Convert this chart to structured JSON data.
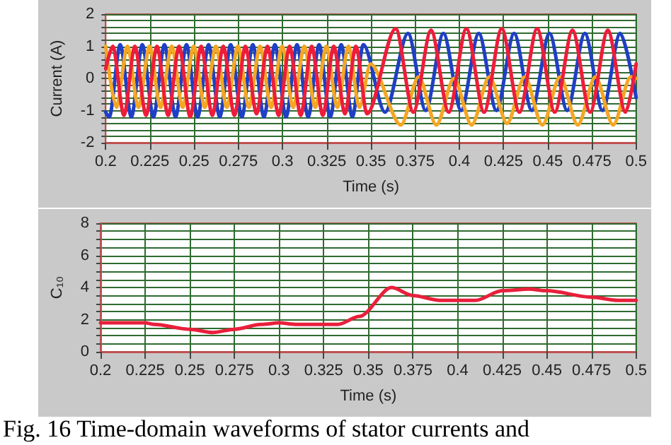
{
  "chart_data": [
    {
      "type": "line",
      "xlabel": "Time (s)",
      "ylabel": "Current (A)",
      "xlim": [
        0.2,
        0.5
      ],
      "xticks": [
        0.2,
        0.225,
        0.25,
        0.275,
        0.3,
        0.325,
        0.35,
        0.375,
        0.4,
        0.425,
        0.45,
        0.475,
        0.5
      ],
      "ylim": [
        -2,
        2
      ],
      "yticks": [
        -2,
        {
          "value": -1.8,
          "label": null
        },
        {
          "value": -1.6,
          "label": null
        },
        {
          "value": -1.4,
          "label": null
        },
        {
          "value": -1.2,
          "label": null
        },
        -1,
        {
          "value": -0.8,
          "label": null
        },
        {
          "value": -0.6,
          "label": null
        },
        {
          "value": -0.4,
          "label": null
        },
        {
          "value": -0.2,
          "label": null
        },
        0,
        {
          "value": 0.2,
          "label": null
        },
        {
          "value": 0.4,
          "label": null
        },
        {
          "value": 0.6,
          "label": null
        },
        {
          "value": 0.8,
          "label": null
        },
        1,
        {
          "value": 1.2,
          "label": null
        },
        {
          "value": 1.4,
          "label": null
        },
        {
          "value": 1.6,
          "label": null
        },
        {
          "value": 1.8,
          "label": null
        },
        2
      ],
      "grid": true,
      "marker": "none",
      "line_style": "solid",
      "series": [
        {
          "color": "#1f3fc4",
          "x": [
            0.2,
            0.202,
            0.2082,
            0.2145,
            0.2207,
            0.227,
            0.2332,
            0.2395,
            0.2457,
            0.252,
            0.2582,
            0.2645,
            0.2707,
            0.277,
            0.2832,
            0.2895,
            0.2957,
            0.302,
            0.3082,
            0.3145,
            0.3207,
            0.327,
            0.3332,
            0.3395,
            0.3457,
            0.358,
            0.371,
            0.381,
            0.391,
            0.401,
            0.411,
            0.421,
            0.431,
            0.441,
            0.451,
            0.461,
            0.471,
            0.481,
            0.491,
            0.5
          ],
          "values": [
            -1.05,
            -1.2,
            1.05,
            -1.2,
            1.05,
            -1.2,
            1.05,
            -1.2,
            1.05,
            -1.2,
            1.05,
            -1.2,
            1.05,
            -1.2,
            1.05,
            -1.2,
            1.05,
            -1.2,
            1.05,
            -1.2,
            1.05,
            -1.2,
            1.05,
            -1.2,
            1.05,
            -1.05,
            1.4,
            -1,
            1.4,
            -1,
            1.4,
            -1,
            1.4,
            -1,
            1.4,
            -1,
            1.4,
            -1,
            1.4,
            -0.6
          ]
        },
        {
          "color": "#f5a623",
          "x": [
            0.2,
            0.206,
            0.2123,
            0.2185,
            0.2248,
            0.231,
            0.2373,
            0.2435,
            0.2498,
            0.256,
            0.2623,
            0.2685,
            0.2748,
            0.281,
            0.2873,
            0.2935,
            0.2998,
            0.306,
            0.3123,
            0.3185,
            0.3248,
            0.331,
            0.3373,
            0.3435,
            0.3498,
            0.367,
            0.377,
            0.387,
            0.397,
            0.407,
            0.417,
            0.427,
            0.437,
            0.447,
            0.457,
            0.467,
            0.477,
            0.487,
            0.497,
            0.5
          ],
          "values": [
            1,
            -0.9,
            1,
            -0.9,
            1,
            -0.9,
            1,
            -0.9,
            1,
            -0.9,
            1,
            -0.9,
            1,
            -0.9,
            1,
            -0.9,
            1,
            -0.9,
            1,
            -0.9,
            1,
            -0.9,
            1,
            -0.9,
            0.45,
            -1.45,
            0.05,
            -1.45,
            0,
            -1.45,
            0.05,
            -1.4,
            0.05,
            -1.45,
            0.05,
            -1.45,
            0.05,
            -1.45,
            0.05,
            0
          ]
        },
        {
          "color": "#ee1c3a",
          "x": [
            0.2,
            0.204,
            0.2103,
            0.2165,
            0.2228,
            0.229,
            0.2353,
            0.2415,
            0.2478,
            0.254,
            0.2603,
            0.2665,
            0.2728,
            0.279,
            0.2853,
            0.2915,
            0.2978,
            0.304,
            0.3103,
            0.3165,
            0.3228,
            0.329,
            0.3353,
            0.3415,
            0.3478,
            0.364,
            0.374,
            0.384,
            0.394,
            0.404,
            0.414,
            0.424,
            0.434,
            0.444,
            0.454,
            0.464,
            0.474,
            0.484,
            0.494,
            0.5
          ],
          "values": [
            0.3,
            1,
            -1.15,
            1,
            -1.15,
            1,
            -1.15,
            1,
            -1.2,
            1,
            -1.15,
            1,
            -1.15,
            1,
            -1.1,
            1,
            -1.15,
            1,
            -1.15,
            1,
            -1.15,
            1,
            -1.1,
            1,
            -1.1,
            1.55,
            -1.05,
            1.5,
            -1.05,
            1.55,
            -1.05,
            1.55,
            -1.05,
            1.55,
            -1.05,
            1.5,
            -1.05,
            1.5,
            -1.05,
            0.45
          ]
        }
      ]
    },
    {
      "type": "line",
      "xlabel": "Time (s)",
      "ylabel": "C₁₀",
      "xlim": [
        0.2,
        0.5
      ],
      "xticks": [
        0.2,
        0.225,
        0.25,
        0.275,
        0.3,
        0.325,
        0.35,
        0.375,
        0.4,
        0.425,
        0.45,
        0.475,
        0.5
      ],
      "ylim": [
        0,
        8
      ],
      "yticks": [
        0,
        {
          "value": 0.5,
          "label": null
        },
        {
          "value": 1,
          "label": null
        },
        {
          "value": 1.5,
          "label": null
        },
        2,
        {
          "value": 2.5,
          "label": null
        },
        {
          "value": 3,
          "label": null
        },
        {
          "value": 3.5,
          "label": null
        },
        4,
        {
          "value": 4.5,
          "label": null
        },
        {
          "value": 5,
          "label": null
        },
        {
          "value": 5.5,
          "label": null
        },
        6,
        {
          "value": 6.5,
          "label": null
        },
        {
          "value": 7,
          "label": null
        },
        {
          "value": 7.5,
          "label": null
        },
        8
      ],
      "grid": true,
      "marker": "none",
      "line_style": "solid",
      "annotations": [
        "Fig. 16 Time-domain waveforms of stator currents and"
      ],
      "series": [
        {
          "color": "#e8203c",
          "x": [
            0.2,
            0.225,
            0.23,
            0.25,
            0.263,
            0.275,
            0.29,
            0.3,
            0.31,
            0.325,
            0.333,
            0.345,
            0.363,
            0.375,
            0.39,
            0.41,
            0.425,
            0.44,
            0.45,
            0.475,
            0.49,
            0.5
          ],
          "values": [
            1.8,
            1.8,
            1.7,
            1.4,
            1.2,
            1.4,
            1.7,
            1.8,
            1.7,
            1.7,
            1.7,
            2.2,
            4,
            3.5,
            3.2,
            3.2,
            3.8,
            3.9,
            3.8,
            3.4,
            3.2,
            3.2
          ]
        }
      ]
    }
  ]
}
